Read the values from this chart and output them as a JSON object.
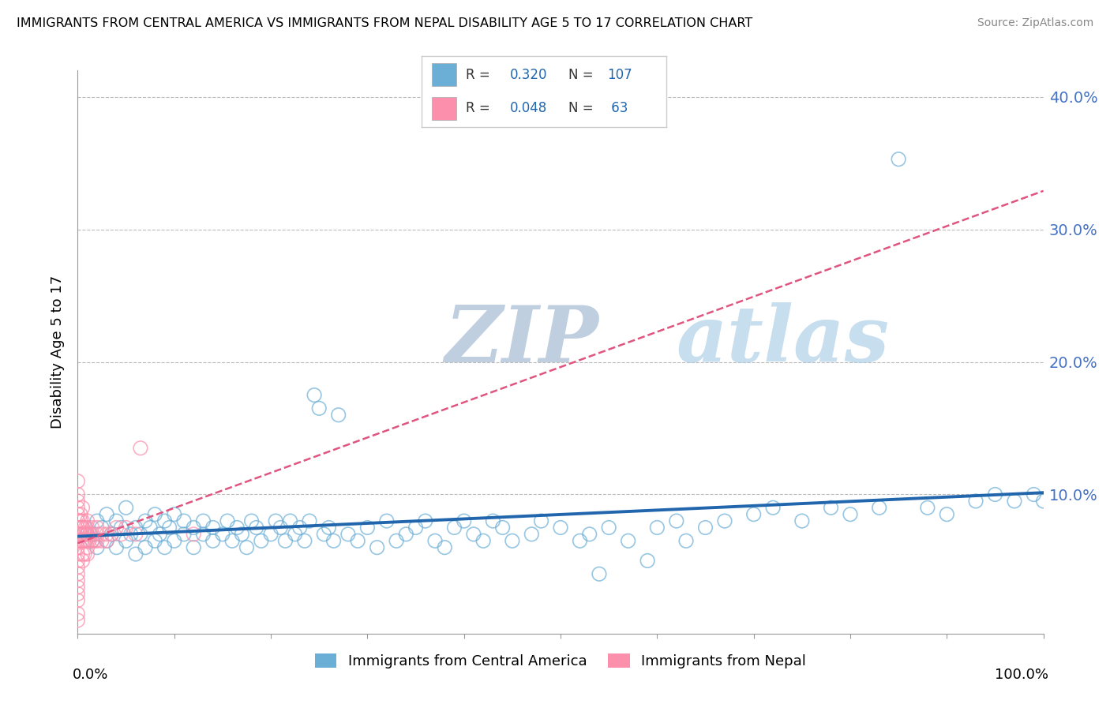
{
  "title": "IMMIGRANTS FROM CENTRAL AMERICA VS IMMIGRANTS FROM NEPAL DISABILITY AGE 5 TO 17 CORRELATION CHART",
  "source": "Source: ZipAtlas.com",
  "ylabel": "Disability Age 5 to 17",
  "right_ytick_vals": [
    0.1,
    0.2,
    0.3,
    0.4
  ],
  "right_ytick_labels": [
    "10.0%",
    "20.0%",
    "30.0%",
    "40.0%"
  ],
  "legend_blue_R": "0.320",
  "legend_blue_N": "107",
  "legend_pink_R": "0.048",
  "legend_pink_N": " 63",
  "legend_label_blue": "Immigrants from Central America",
  "legend_label_pink": "Immigrants from Nepal",
  "blue_color": "#6baed6",
  "blue_edge_color": "#4292c6",
  "pink_color": "#fc8fac",
  "pink_edge_color": "#e05580",
  "blue_line_color": "#2166ac",
  "pink_line_color": "#e05580",
  "watermark_zip": "ZIP",
  "watermark_atlas": "atlas",
  "watermark_color": "#ccd8e8",
  "xlim": [
    0.0,
    1.0
  ],
  "ylim": [
    -0.005,
    0.42
  ],
  "blue_scatter_x": [
    0.005,
    0.01,
    0.015,
    0.02,
    0.02,
    0.025,
    0.03,
    0.03,
    0.035,
    0.04,
    0.04,
    0.045,
    0.05,
    0.05,
    0.055,
    0.06,
    0.06,
    0.065,
    0.07,
    0.07,
    0.075,
    0.08,
    0.08,
    0.085,
    0.09,
    0.09,
    0.095,
    0.1,
    0.1,
    0.11,
    0.11,
    0.12,
    0.12,
    0.13,
    0.13,
    0.14,
    0.14,
    0.15,
    0.155,
    0.16,
    0.165,
    0.17,
    0.175,
    0.18,
    0.185,
    0.19,
    0.2,
    0.205,
    0.21,
    0.215,
    0.22,
    0.225,
    0.23,
    0.235,
    0.24,
    0.245,
    0.25,
    0.255,
    0.26,
    0.265,
    0.27,
    0.28,
    0.29,
    0.3,
    0.31,
    0.32,
    0.33,
    0.34,
    0.35,
    0.36,
    0.37,
    0.38,
    0.39,
    0.4,
    0.41,
    0.42,
    0.43,
    0.44,
    0.45,
    0.47,
    0.48,
    0.5,
    0.52,
    0.53,
    0.54,
    0.55,
    0.57,
    0.59,
    0.6,
    0.62,
    0.63,
    0.65,
    0.67,
    0.7,
    0.72,
    0.75,
    0.78,
    0.8,
    0.83,
    0.85,
    0.88,
    0.9,
    0.93,
    0.95,
    0.97,
    0.99,
    1.0
  ],
  "blue_scatter_y": [
    0.075,
    0.07,
    0.065,
    0.08,
    0.06,
    0.075,
    0.065,
    0.085,
    0.07,
    0.08,
    0.06,
    0.075,
    0.065,
    0.09,
    0.07,
    0.075,
    0.055,
    0.07,
    0.06,
    0.08,
    0.075,
    0.065,
    0.085,
    0.07,
    0.06,
    0.08,
    0.075,
    0.065,
    0.085,
    0.07,
    0.08,
    0.075,
    0.06,
    0.07,
    0.08,
    0.065,
    0.075,
    0.07,
    0.08,
    0.065,
    0.075,
    0.07,
    0.06,
    0.08,
    0.075,
    0.065,
    0.07,
    0.08,
    0.075,
    0.065,
    0.08,
    0.07,
    0.075,
    0.065,
    0.08,
    0.175,
    0.165,
    0.07,
    0.075,
    0.065,
    0.16,
    0.07,
    0.065,
    0.075,
    0.06,
    0.08,
    0.065,
    0.07,
    0.075,
    0.08,
    0.065,
    0.06,
    0.075,
    0.08,
    0.07,
    0.065,
    0.08,
    0.075,
    0.065,
    0.07,
    0.08,
    0.075,
    0.065,
    0.07,
    0.04,
    0.075,
    0.065,
    0.05,
    0.075,
    0.08,
    0.065,
    0.075,
    0.08,
    0.085,
    0.09,
    0.08,
    0.09,
    0.085,
    0.09,
    0.353,
    0.09,
    0.085,
    0.095,
    0.1,
    0.095,
    0.1,
    0.095
  ],
  "pink_scatter_x": [
    0.0,
    0.0,
    0.0,
    0.0,
    0.0,
    0.0,
    0.0,
    0.0,
    0.0,
    0.0,
    0.0,
    0.0,
    0.0,
    0.0,
    0.0,
    0.0,
    0.0,
    0.0,
    0.0,
    0.0,
    0.003,
    0.003,
    0.003,
    0.003,
    0.004,
    0.005,
    0.005,
    0.005,
    0.005,
    0.005,
    0.005,
    0.006,
    0.007,
    0.007,
    0.008,
    0.008,
    0.009,
    0.01,
    0.01,
    0.01,
    0.01,
    0.01,
    0.01,
    0.012,
    0.013,
    0.015,
    0.015,
    0.015,
    0.018,
    0.02,
    0.02,
    0.02,
    0.025,
    0.025,
    0.03,
    0.03,
    0.035,
    0.04,
    0.045,
    0.05,
    0.06,
    0.065,
    0.12
  ],
  "pink_scatter_y": [
    0.07,
    0.075,
    0.08,
    0.085,
    0.09,
    0.095,
    0.1,
    0.065,
    0.06,
    0.055,
    0.05,
    0.045,
    0.04,
    0.035,
    0.03,
    0.025,
    0.02,
    0.01,
    0.005,
    0.11,
    0.07,
    0.075,
    0.08,
    0.085,
    0.065,
    0.09,
    0.07,
    0.075,
    0.08,
    0.055,
    0.05,
    0.065,
    0.07,
    0.055,
    0.065,
    0.075,
    0.07,
    0.065,
    0.07,
    0.075,
    0.055,
    0.06,
    0.08,
    0.065,
    0.07,
    0.065,
    0.07,
    0.075,
    0.065,
    0.07,
    0.075,
    0.065,
    0.07,
    0.065,
    0.07,
    0.065,
    0.07,
    0.075,
    0.07,
    0.075,
    0.07,
    0.135,
    0.07
  ]
}
